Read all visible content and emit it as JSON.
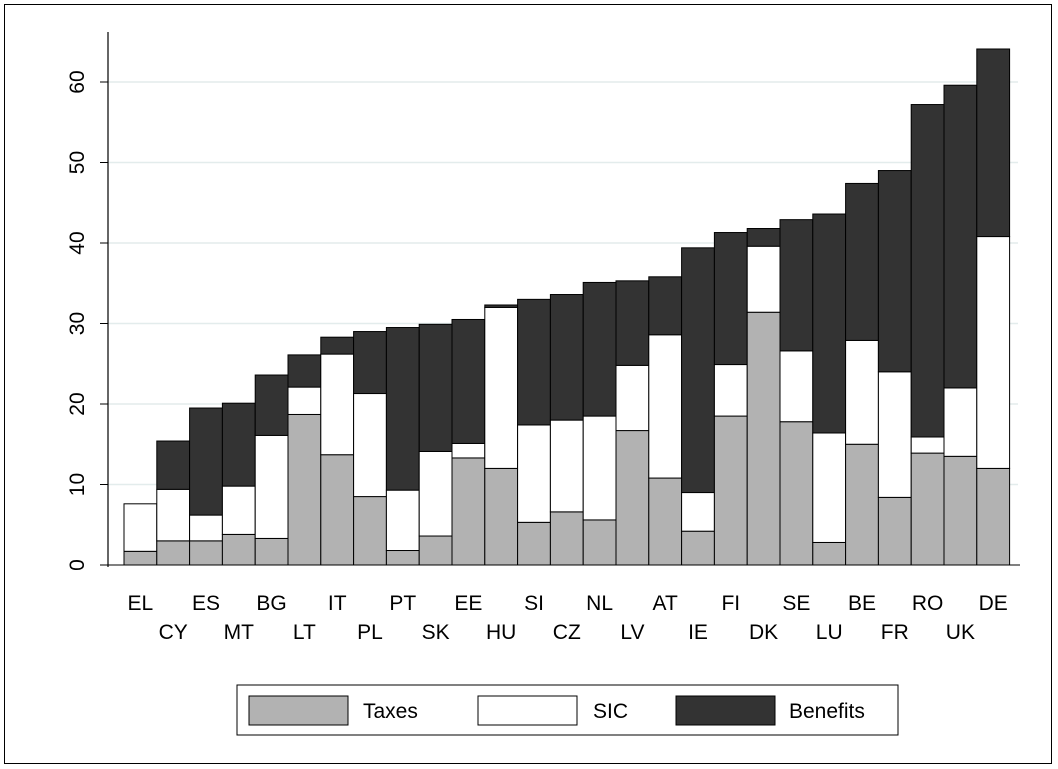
{
  "chart_data": {
    "type": "bar",
    "stacked": true,
    "title": "",
    "xlabel": "",
    "ylabel": "",
    "ylim": [
      0,
      66
    ],
    "yticks": [
      0,
      10,
      20,
      30,
      40,
      50,
      60
    ],
    "grid": true,
    "legend_position": "bottom",
    "categories": [
      "EL",
      "CY",
      "ES",
      "MT",
      "BG",
      "LT",
      "IT",
      "PL",
      "PT",
      "SK",
      "EE",
      "HU",
      "SI",
      "CZ",
      "NL",
      "LV",
      "AT",
      "IE",
      "FI",
      "DK",
      "SE",
      "LU",
      "BE",
      "FR",
      "RO",
      "UK",
      "DE"
    ],
    "series": [
      {
        "name": "Taxes",
        "color": "#b2b2b2",
        "values": [
          1.7,
          3.0,
          3.0,
          3.8,
          3.3,
          18.7,
          13.7,
          8.5,
          1.8,
          3.6,
          13.3,
          12.0,
          5.3,
          6.6,
          5.6,
          16.7,
          10.8,
          4.2,
          18.5,
          31.4,
          17.8,
          2.8,
          15.0,
          8.4,
          13.9,
          13.5,
          12.0
        ]
      },
      {
        "name": "SIC",
        "color": "#ffffff",
        "values": [
          5.9,
          6.4,
          3.2,
          6.0,
          12.8,
          3.4,
          12.5,
          12.8,
          7.5,
          10.5,
          1.8,
          20.0,
          12.1,
          11.4,
          12.9,
          8.1,
          17.8,
          4.8,
          6.4,
          8.2,
          8.8,
          13.6,
          12.9,
          15.6,
          2.0,
          8.5,
          28.8
        ]
      },
      {
        "name": "Benefits",
        "color": "#333333",
        "values": [
          0.0,
          6.0,
          13.3,
          10.3,
          7.5,
          4.0,
          2.1,
          7.7,
          20.2,
          15.8,
          15.4,
          0.3,
          15.6,
          15.6,
          16.6,
          10.5,
          7.2,
          30.4,
          16.4,
          2.2,
          16.3,
          27.2,
          19.5,
          25.0,
          41.3,
          37.6,
          23.3
        ]
      }
    ]
  }
}
